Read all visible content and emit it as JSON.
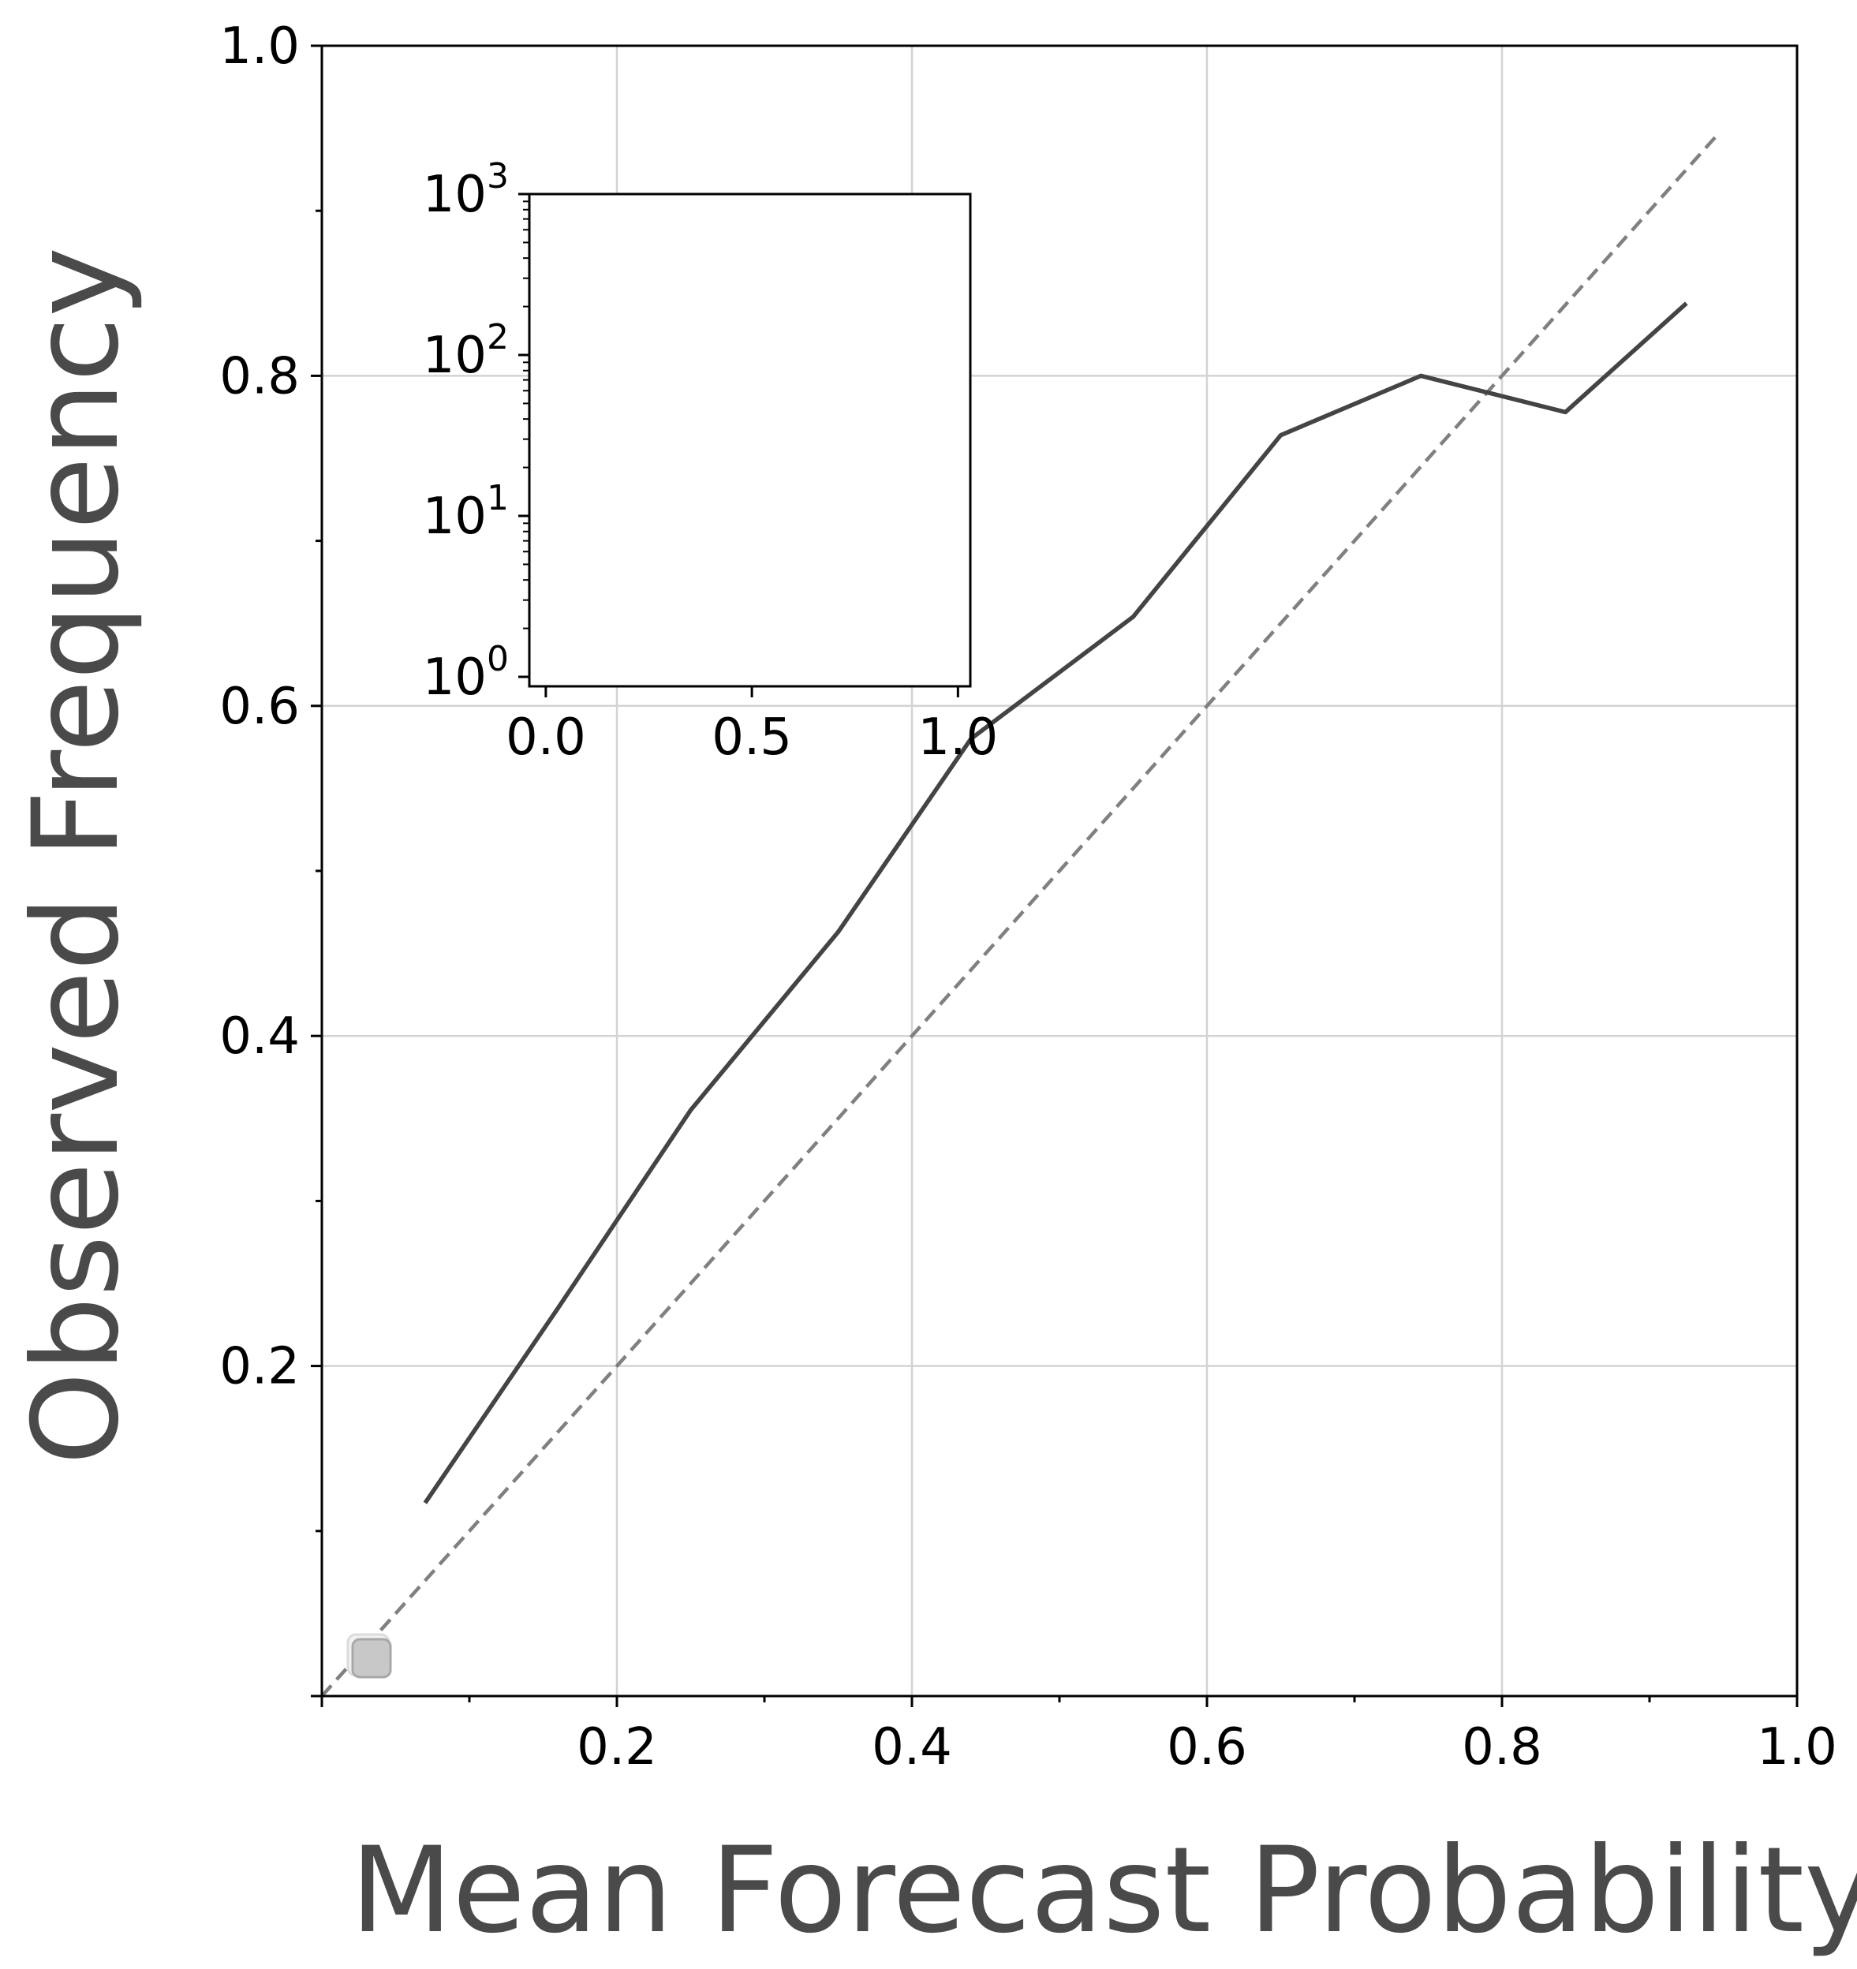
{
  "chart_data": {
    "type": "line",
    "xlabel": "Mean Forecast Probability",
    "ylabel": "Observed Frequency",
    "xlim": [
      0.0,
      1.0
    ],
    "ylim": [
      0.0,
      1.0
    ],
    "x_ticks": [
      0.2,
      0.4,
      0.6,
      0.8,
      1.0
    ],
    "x_tick_labels": [
      "0.2",
      "0.4",
      "0.6",
      "0.8",
      "1.0"
    ],
    "y_ticks": [
      0.2,
      0.4,
      0.6,
      0.8,
      1.0
    ],
    "y_tick_labels": [
      "0.2",
      "0.4",
      "0.6",
      "0.8",
      "1.0"
    ],
    "grid": true,
    "series": [
      {
        "style": "solid",
        "color": "#444444",
        "x": [
          0.07,
          0.16,
          0.25,
          0.35,
          0.44,
          0.55,
          0.65,
          0.745,
          0.843,
          0.925
        ],
        "y": [
          0.117,
          0.235,
          0.355,
          0.463,
          0.58,
          0.654,
          0.764,
          0.8,
          0.778,
          0.844
        ]
      },
      {
        "style": "dashed",
        "color": "#808080",
        "x": [
          0.0,
          0.945
        ],
        "y": [
          0.0,
          0.945
        ]
      }
    ],
    "inset": {
      "yscale": "log",
      "ylim": [
        1,
        1000
      ],
      "xlim": [
        -0.04,
        1.03
      ],
      "x_ticks": [
        0.0,
        0.5,
        1.0
      ],
      "x_tick_labels": [
        "0.0",
        "0.5",
        "1.0"
      ],
      "y_ticks": [
        1,
        10,
        100,
        1000
      ],
      "y_tick_labels": [
        {
          "base": "10",
          "exp": "0"
        },
        {
          "base": "10",
          "exp": "1"
        },
        {
          "base": "10",
          "exp": "2"
        },
        {
          "base": "10",
          "exp": "3"
        }
      ]
    },
    "legend_marker": {
      "placement": "bottom-left",
      "color": "#c8c8c8"
    }
  }
}
